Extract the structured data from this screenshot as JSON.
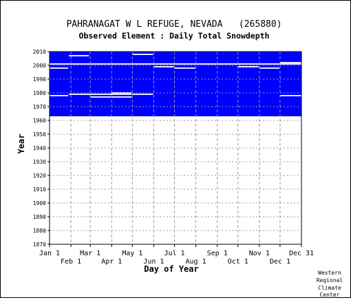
{
  "chart_data": {
    "type": "scatter",
    "title": "PAHRANAGAT W L REFUGE, NEVADA   (265880)",
    "subtitle": "Observed Element : Daily Total Snowdepth",
    "xlabel": "Day of Year",
    "ylabel": "Year",
    "ylim": [
      1870,
      2010
    ],
    "yticks": [
      1870,
      1880,
      1890,
      1900,
      1910,
      1920,
      1930,
      1940,
      1950,
      1960,
      1970,
      1980,
      1990,
      2000,
      2010
    ],
    "xlim": [
      1,
      366
    ],
    "xticks_top": [
      {
        "label": "Jan 1",
        "day": 1
      },
      {
        "label": "Mar 1",
        "day": 60
      },
      {
        "label": "May 1",
        "day": 121
      },
      {
        "label": "Jul 1",
        "day": 182
      },
      {
        "label": "Sep 1",
        "day": 244
      },
      {
        "label": "Nov 1",
        "day": 305
      },
      {
        "label": "Dec 31",
        "day": 366
      }
    ],
    "xticks_bottom": [
      {
        "label": "Feb 1",
        "day": 32
      },
      {
        "label": "Apr 1",
        "day": 91
      },
      {
        "label": "Jun 1",
        "day": 152
      },
      {
        "label": "Aug 1",
        "day": 213
      },
      {
        "label": "Oct 1",
        "day": 274
      },
      {
        "label": "Dec 1",
        "day": 335
      }
    ],
    "grid": true,
    "data_color": "#0000ff",
    "record_years": [
      1963,
      2010
    ],
    "missing_segments": [
      {
        "year": 2001,
        "start": 1,
        "end": 366
      },
      {
        "year": 2007,
        "start": 29,
        "end": 58
      },
      {
        "year": 2008,
        "start": 121,
        "end": 151
      },
      {
        "year": 1999,
        "start": 152,
        "end": 181
      },
      {
        "year": 1998,
        "start": 182,
        "end": 212
      },
      {
        "year": 1999,
        "start": 274,
        "end": 304
      },
      {
        "year": 1998,
        "start": 305,
        "end": 334
      },
      {
        "year": 2002,
        "start": 335,
        "end": 366
      },
      {
        "year": 1998,
        "start": 1,
        "end": 28
      },
      {
        "year": 1978,
        "start": 1,
        "end": 28
      },
      {
        "year": 1979,
        "start": 29,
        "end": 120
      },
      {
        "year": 1980,
        "start": 90,
        "end": 120
      },
      {
        "year": 1977,
        "start": 60,
        "end": 120
      },
      {
        "year": 1979,
        "start": 121,
        "end": 151
      },
      {
        "year": 1978,
        "start": 335,
        "end": 366
      }
    ]
  },
  "credit": [
    "Western",
    "Regional",
    "Climate",
    "Center"
  ]
}
